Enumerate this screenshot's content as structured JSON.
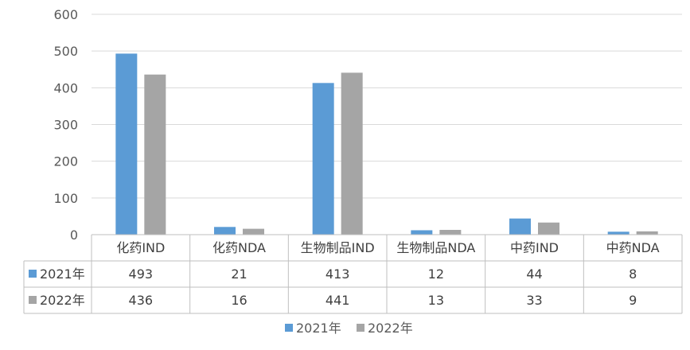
{
  "chart_data": {
    "type": "bar",
    "categories": [
      "化药IND",
      "化药NDA",
      "生物制品IND",
      "生物制品NDA",
      "中药IND",
      "中药NDA"
    ],
    "series": [
      {
        "name": "2021年",
        "values": [
          493,
          21,
          413,
          12,
          44,
          8
        ],
        "color": "#5b9bd5"
      },
      {
        "name": "2022年",
        "values": [
          436,
          16,
          441,
          13,
          33,
          9
        ],
        "color": "#a5a5a5"
      }
    ],
    "yticks": [
      0,
      100,
      200,
      300,
      400,
      500,
      600
    ],
    "ylim": [
      0,
      600
    ],
    "grid": true,
    "legend": "bottom",
    "data_table": true
  }
}
